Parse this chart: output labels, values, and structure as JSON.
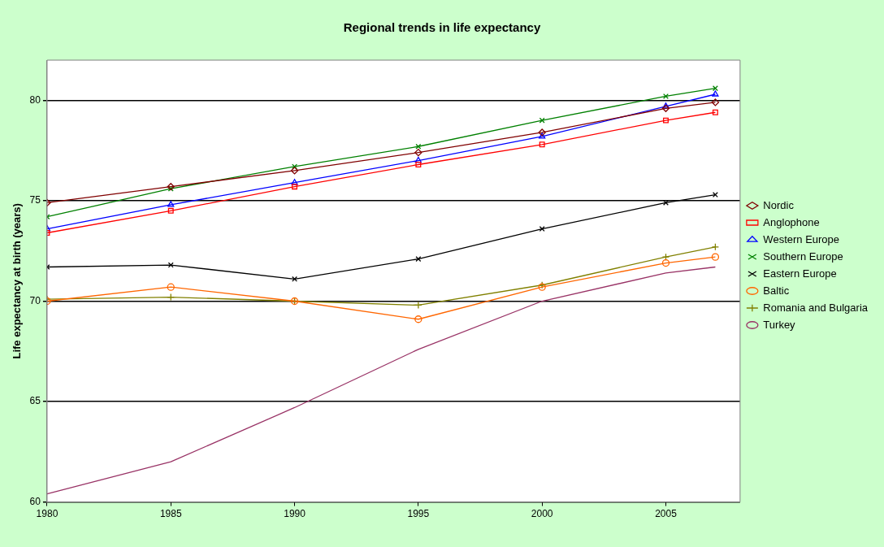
{
  "chart_data": {
    "type": "line",
    "title": "Regional trends in life expectancy",
    "ylabel": "Life expectancy at birth (years)",
    "x": [
      1980,
      1985,
      1990,
      1995,
      2000,
      2005,
      2007
    ],
    "xlim": [
      1980,
      2008
    ],
    "xticks": [
      1980,
      1985,
      1990,
      1995,
      2000,
      2005
    ],
    "ylim": [
      60,
      82
    ],
    "yticks": [
      60,
      65,
      70,
      75,
      80
    ],
    "grid": "y",
    "legend": "right",
    "series": [
      {
        "name": "Nordic",
        "color": "#800000",
        "marker": "diamond",
        "values": [
          74.9,
          75.7,
          76.5,
          77.4,
          78.4,
          79.6,
          79.9
        ]
      },
      {
        "name": "Anglophone",
        "color": "#ff0000",
        "marker": "square",
        "values": [
          73.4,
          74.5,
          75.7,
          76.8,
          77.8,
          79.0,
          79.4
        ]
      },
      {
        "name": "Western Europe",
        "color": "#0000ff",
        "marker": "triangle",
        "values": [
          73.6,
          74.8,
          75.9,
          77.0,
          78.2,
          79.7,
          80.3
        ]
      },
      {
        "name": "Southern Europe",
        "color": "#008000",
        "marker": "cross",
        "values": [
          74.2,
          75.6,
          76.7,
          77.7,
          79.0,
          80.2,
          80.6
        ]
      },
      {
        "name": "Eastern Europe",
        "color": "#000000",
        "marker": "cross",
        "values": [
          71.7,
          71.8,
          71.1,
          72.1,
          73.6,
          74.9,
          75.3
        ]
      },
      {
        "name": "Baltic",
        "color": "#ff6600",
        "marker": "circle",
        "values": [
          70.0,
          70.7,
          70.0,
          69.1,
          70.7,
          71.9,
          72.2
        ]
      },
      {
        "name": "Romania and Bulgaria",
        "color": "#808000",
        "marker": "plus",
        "values": [
          70.1,
          70.2,
          70.0,
          69.8,
          70.8,
          72.2,
          72.7
        ]
      },
      {
        "name": "Turkey",
        "color": "#993366",
        "marker": "none",
        "values": [
          60.4,
          62.0,
          64.7,
          67.6,
          70.0,
          71.4,
          71.7
        ]
      }
    ]
  }
}
